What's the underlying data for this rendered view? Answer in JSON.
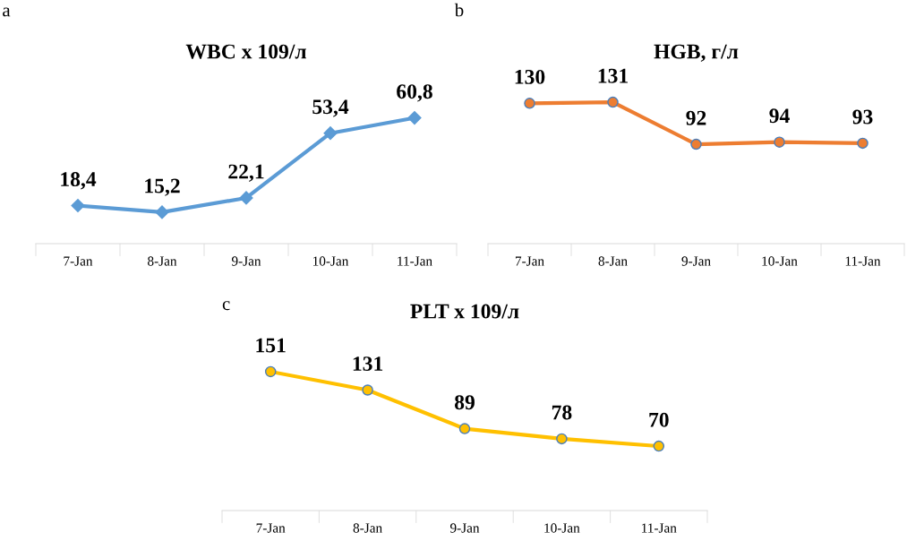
{
  "chart_data": [
    {
      "type": "line",
      "title": "WBC x 109/л",
      "annotations": [
        "a"
      ],
      "categories": [
        "7-Jan",
        "8-Jan",
        "9-Jan",
        "10-Jan",
        "11-Jan"
      ],
      "series": [
        {
          "color": "#5b9bd5",
          "values": [
            18.4,
            15.2,
            22.1,
            53.4,
            60.8
          ],
          "value_labels": [
            "18,4",
            "15,2",
            "22,1",
            "53,4",
            "60,8"
          ]
        }
      ],
      "marker": "diamond",
      "tick_labels": "x",
      "grid": false,
      "legend": false
    },
    {
      "type": "line",
      "title": "HGB, г/л",
      "annotations": [
        "b"
      ],
      "categories": [
        "7-Jan",
        "8-Jan",
        "9-Jan",
        "10-Jan",
        "11-Jan"
      ],
      "series": [
        {
          "color": "#ed7d31",
          "values": [
            130,
            131,
            92,
            94,
            93
          ]
        }
      ],
      "data_labels": true,
      "marker": "circle",
      "tick_labels": "x",
      "grid": false,
      "legend": false
    },
    {
      "type": "line",
      "title": "PLT x 109/л",
      "annotations": [
        "c"
      ],
      "categories": [
        "7-Jan",
        "8-Jan",
        "9-Jan",
        "10-Jan",
        "11-Jan"
      ],
      "series": [
        {
          "color": "#ffc000",
          "values": [
            151,
            131,
            89,
            78,
            70
          ]
        }
      ],
      "data_labels": true,
      "marker": "circle",
      "tick_labels": "x",
      "grid": false,
      "legend": false
    }
  ]
}
